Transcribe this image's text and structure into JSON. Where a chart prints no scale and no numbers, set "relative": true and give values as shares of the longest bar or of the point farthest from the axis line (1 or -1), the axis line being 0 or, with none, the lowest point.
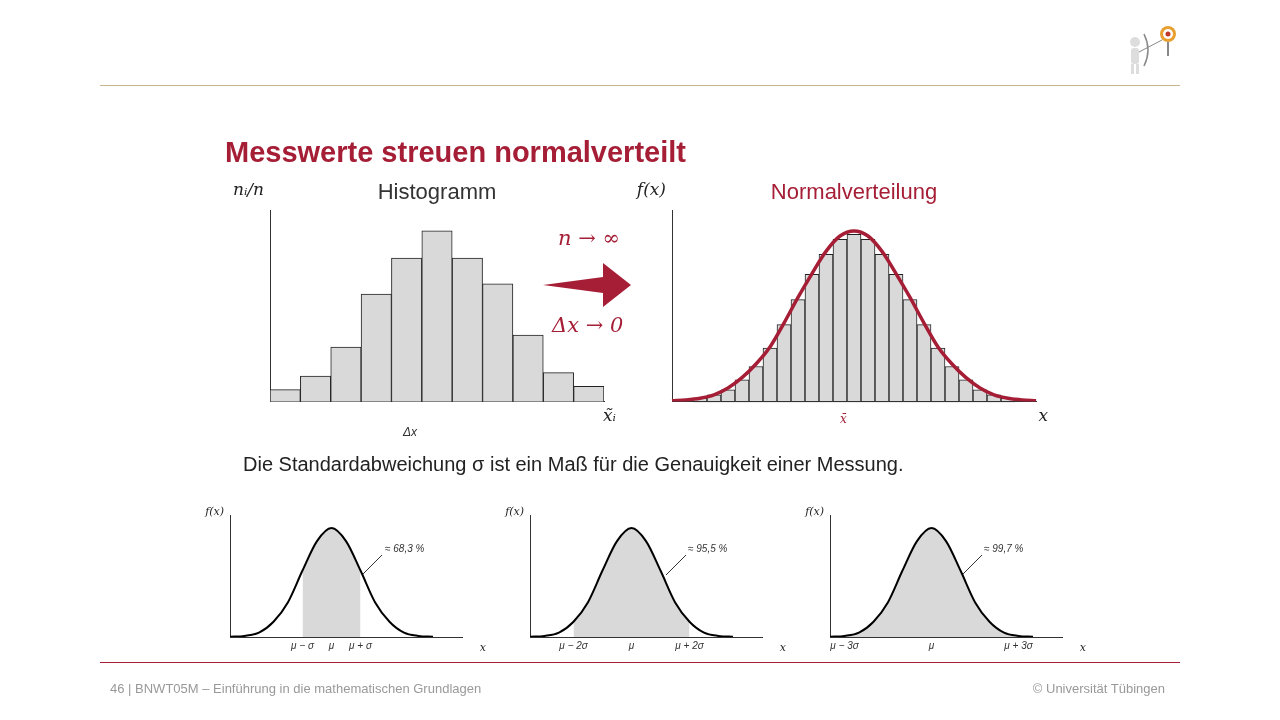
{
  "chart_data": [
    {
      "type": "bar",
      "title": "Histogramm",
      "xlabel": "x̃ᵢ",
      "ylabel": "nᵢ/n",
      "relative": true,
      "categories": [
        null,
        null,
        null,
        null,
        null,
        null,
        null,
        null,
        null,
        null,
        null
      ],
      "values": [
        0.07,
        0.15,
        0.32,
        0.63,
        0.84,
        1,
        0.84,
        0.69,
        0.39,
        0.17,
        0.09
      ],
      "color": "#d9d9d9",
      "annotations": [
        "Messwerte streuen normalverteilt",
        "Δx"
      ]
    },
    {
      "type": "line",
      "title": "Normalverteilung",
      "xlabel": "x",
      "ylabel": "f(x)",
      "relative": true,
      "categories": [
        null,
        null,
        null,
        null,
        null,
        null,
        null,
        null,
        null,
        null,
        null,
        null,
        null,
        null,
        null,
        null,
        null,
        null,
        null,
        null,
        null,
        null,
        null,
        null,
        null,
        null,
        null
      ],
      "series": [
        {
          "color": "#a51e36",
          "values": [
            0.005,
            0.01,
            0.02,
            0.04,
            0.08,
            0.14,
            0.22,
            0.32,
            0.46,
            0.61,
            0.75,
            0.88,
            0.97,
            1,
            0.97,
            0.88,
            0.75,
            0.61,
            0.46,
            0.32,
            0.22,
            0.14,
            0.08,
            0.04,
            0.02,
            0.01,
            0.005
          ]
        }
      ],
      "annotations": [
        "n → ∞",
        "Δx → 0",
        "x̄"
      ]
    },
    {
      "type": "bar",
      "relative": true,
      "categories": [
        null,
        null,
        null,
        null,
        null,
        null,
        null,
        null,
        null,
        null,
        null,
        null,
        null,
        null,
        null,
        null,
        null,
        null,
        null,
        null,
        null,
        null,
        null
      ],
      "values": [
        0.02,
        0.04,
        0.07,
        0.13,
        0.21,
        0.32,
        0.46,
        0.61,
        0.76,
        0.88,
        0.97,
        1,
        0.97,
        0.88,
        0.76,
        0.61,
        0.46,
        0.32,
        0.21,
        0.13,
        0.07,
        0.04,
        0.02
      ],
      "color": "#d9d9d9"
    },
    {
      "type": "area",
      "xlabel": "x",
      "ylabel": "f(x)",
      "relative": true,
      "categories": [
        null,
        null,
        null,
        null,
        null,
        "μ − σ",
        null,
        "μ",
        null,
        "μ + σ",
        null,
        null,
        null,
        null,
        null,
        null,
        null
      ],
      "series": [
        {
          "type": "line",
          "color": "#000000",
          "values": [
            0.002,
            0.01,
            0.04,
            0.14,
            0.32,
            0.61,
            0.88,
            1,
            0.88,
            0.61,
            0.32,
            0.14,
            0.04,
            0.01,
            0.002,
            null,
            null
          ]
        },
        {
          "color": "#d9d9d9",
          "values": [
            null,
            null,
            null,
            null,
            null,
            0.61,
            0.88,
            1,
            0.88,
            0.61,
            null,
            null,
            null,
            null,
            null,
            null,
            null
          ]
        }
      ],
      "annotations": [
        "Die Standardabweichung σ ist ein Maß für die Genauigkeit einer Messung.",
        "≈ 68,3 %"
      ]
    },
    {
      "type": "area",
      "xlabel": "x",
      "ylabel": "f(x)",
      "relative": true,
      "categories": [
        null,
        null,
        null,
        "μ − 2σ",
        null,
        null,
        null,
        "μ",
        null,
        null,
        null,
        "μ + 2σ",
        null,
        null,
        null,
        null,
        null
      ],
      "series": [
        {
          "type": "line",
          "color": "#000000",
          "values": [
            0.002,
            0.01,
            0.04,
            0.14,
            0.32,
            0.61,
            0.88,
            1,
            0.88,
            0.61,
            0.32,
            0.14,
            0.04,
            0.01,
            0.002,
            null,
            null
          ]
        },
        {
          "color": "#d9d9d9",
          "values": [
            null,
            null,
            null,
            0.14,
            0.32,
            0.61,
            0.88,
            1,
            0.88,
            0.61,
            0.32,
            0.14,
            null,
            null,
            null,
            null,
            null
          ]
        }
      ],
      "annotations": [
        "≈ 95,5 %"
      ]
    },
    {
      "type": "area",
      "xlabel": "x",
      "ylabel": "f(x)",
      "relative": true,
      "categories": [
        null,
        "μ − 3σ",
        null,
        null,
        null,
        null,
        null,
        "μ",
        null,
        null,
        null,
        null,
        null,
        "μ + 3σ",
        null,
        null,
        null
      ],
      "series": [
        {
          "type": "line",
          "color": "#000000",
          "values": [
            0.002,
            0.01,
            0.04,
            0.14,
            0.32,
            0.61,
            0.88,
            1,
            0.88,
            0.61,
            0.32,
            0.14,
            0.04,
            0.01,
            0.002,
            null,
            null
          ]
        },
        {
          "color": "#d9d9d9",
          "values": [
            null,
            0.01,
            0.04,
            0.14,
            0.32,
            0.61,
            0.88,
            1,
            0.88,
            0.61,
            0.32,
            0.14,
            0.04,
            0.01,
            null,
            null,
            null
          ]
        }
      ],
      "annotations": [
        "≈ 99,7 %",
        "46 | BNWT05M – Einführung in die mathematischen Grundlagen",
        "© Universität Tübingen"
      ]
    }
  ]
}
